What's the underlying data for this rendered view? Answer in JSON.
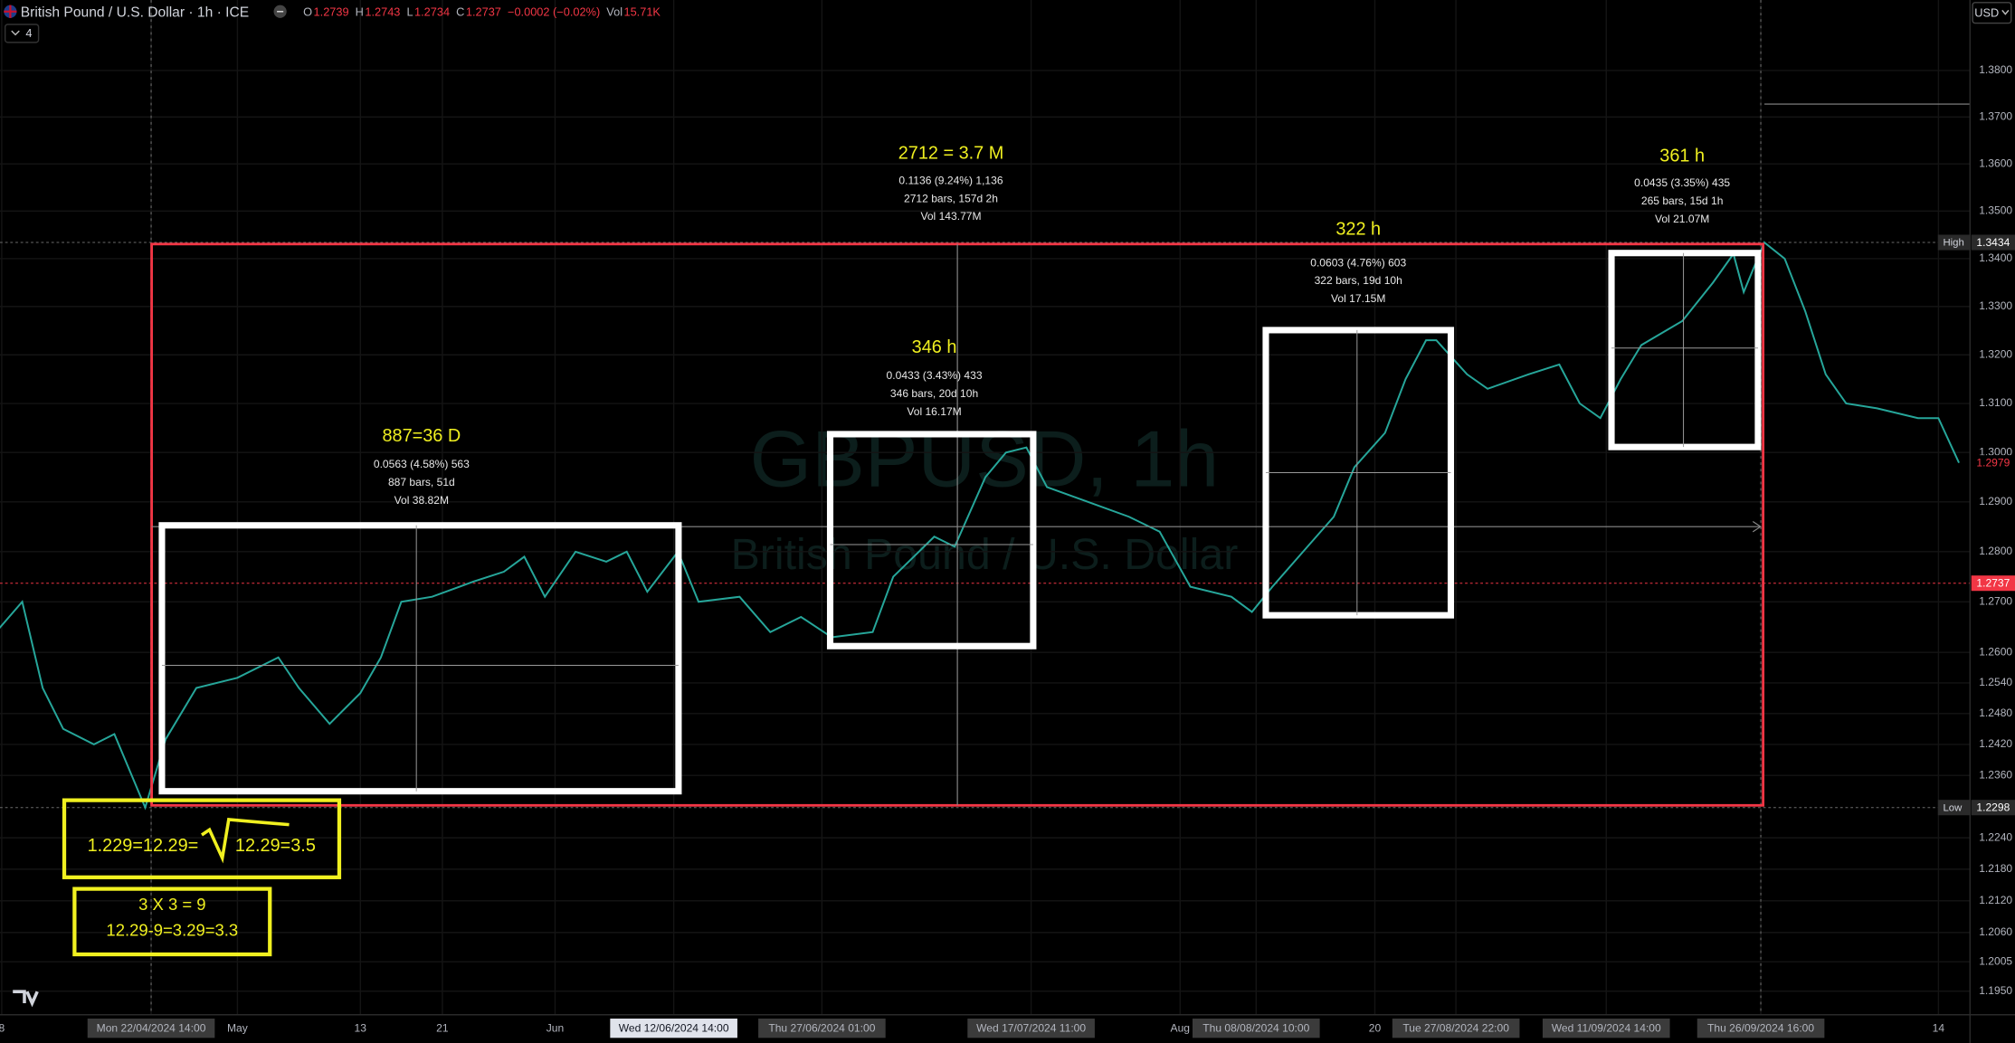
{
  "header": {
    "symbol": "British Pound / U.S. Dollar · 1h · ICE",
    "quote": [
      {
        "label": "O",
        "value": "1.2739"
      },
      {
        "label": "H",
        "value": "1.2743"
      },
      {
        "label": "L",
        "value": "1.2734"
      },
      {
        "label": "C",
        "value": "1.2737"
      },
      {
        "label": "",
        "value": "−0.0002 (−0.02%)"
      },
      {
        "label": "Vol",
        "value": "15.71K"
      }
    ],
    "indicators_count": "4",
    "currency": "USD"
  },
  "watermark": {
    "symbol": "GBPUSD, 1h",
    "name": "British Pound / U.S. Dollar"
  },
  "chart_data": {
    "type": "line",
    "color": "#26a69a",
    "ylog": true,
    "grid": true,
    "x": [
      "2024-04-07",
      "2024-04-10",
      "2024-04-12",
      "2024-04-14",
      "2024-04-17",
      "2024-04-19",
      "2024-04-22",
      "2024-04-24",
      "2024-04-27",
      "2024-05-01",
      "2024-05-05",
      "2024-05-07",
      "2024-05-10",
      "2024-05-13",
      "2024-05-15",
      "2024-05-17",
      "2024-05-20",
      "2024-05-24",
      "2024-05-27",
      "2024-05-29",
      "2024-05-31",
      "2024-06-03",
      "2024-06-06",
      "2024-06-08",
      "2024-06-10",
      "2024-06-13",
      "2024-06-15",
      "2024-06-19",
      "2024-06-22",
      "2024-06-25",
      "2024-06-28",
      "2024-07-02",
      "2024-07-04",
      "2024-07-08",
      "2024-07-10",
      "2024-07-13",
      "2024-07-15",
      "2024-07-17",
      "2024-07-19",
      "2024-07-23",
      "2024-07-27",
      "2024-07-30",
      "2024-08-02",
      "2024-08-06",
      "2024-08-08",
      "2024-08-10",
      "2024-08-13",
      "2024-08-16",
      "2024-08-18",
      "2024-08-21",
      "2024-08-23",
      "2024-08-25",
      "2024-08-26",
      "2024-08-29",
      "2024-08-31",
      "2024-09-04",
      "2024-09-07",
      "2024-09-09",
      "2024-09-11",
      "2024-09-13",
      "2024-09-15",
      "2024-09-19",
      "2024-09-22",
      "2024-09-24",
      "2024-09-25",
      "2024-09-27",
      "2024-09-29",
      "2024-10-01",
      "2024-10-03",
      "2024-10-05",
      "2024-10-08",
      "2024-10-12",
      "2024-10-14",
      "2024-10-16"
    ],
    "values": [
      1.263,
      1.27,
      1.253,
      1.245,
      1.242,
      1.244,
      1.2298,
      1.243,
      1.253,
      1.255,
      1.259,
      1.253,
      1.246,
      1.252,
      1.259,
      1.27,
      1.271,
      1.274,
      1.276,
      1.279,
      1.271,
      1.28,
      1.278,
      1.28,
      1.272,
      1.28,
      1.27,
      1.271,
      1.264,
      1.267,
      1.263,
      1.264,
      1.275,
      1.283,
      1.281,
      1.295,
      1.3,
      1.301,
      1.293,
      1.29,
      1.287,
      1.284,
      1.273,
      1.271,
      1.268,
      1.273,
      1.28,
      1.287,
      1.297,
      1.304,
      1.315,
      1.323,
      1.323,
      1.316,
      1.313,
      1.316,
      1.318,
      1.31,
      1.307,
      1.315,
      1.322,
      1.327,
      1.335,
      1.341,
      1.333,
      1.3434,
      1.34,
      1.329,
      1.316,
      1.31,
      1.309,
      1.307,
      1.307,
      1.2979
    ],
    "xlim": [
      "2024-04-07T20:00",
      "2024-10-17T02:00"
    ],
    "xticks": [
      {
        "value": "2024-04-08T00:00",
        "label": "8"
      },
      {
        "value": "2024-04-22T14:00",
        "label": "Mon 22/04/2024 14:00"
      },
      {
        "value": "2024-05-01T00:00",
        "label": "May"
      },
      {
        "value": "2024-05-13T00:00",
        "label": "13"
      },
      {
        "value": "2024-05-21T00:00",
        "label": "21"
      },
      {
        "value": "2024-06-01T00:00",
        "label": "Jun"
      },
      {
        "value": "2024-06-12T14:00",
        "label": "Wed 12/06/2024 14:00"
      },
      {
        "value": "2024-06-27T01:00",
        "label": "Thu 27/06/2024 01:00"
      },
      {
        "value": "2024-07-17T11:00",
        "label": "Wed 17/07/2024 11:00"
      },
      {
        "value": "2024-08-01T00:00",
        "label": "Aug"
      },
      {
        "value": "2024-08-08T10:00",
        "label": "Thu 08/08/2024 10:00"
      },
      {
        "value": "2024-08-20T00:00",
        "label": "20"
      },
      {
        "value": "2024-08-27T22:00",
        "label": "Tue 27/08/2024 22:00"
      },
      {
        "value": "2024-09-11T14:00",
        "label": "Wed 11/09/2024 14:00"
      },
      {
        "value": "2024-09-26T16:00",
        "label": "Thu 26/09/2024 16:00"
      },
      {
        "value": "2024-10-14T00:00",
        "label": "14"
      }
    ],
    "ylim": [
      1.1906,
      1.3953
    ],
    "yticks": [
      {
        "value": 1.38,
        "label": "1.3800"
      },
      {
        "value": 1.37,
        "label": "1.3700"
      },
      {
        "value": 1.36,
        "label": "1.3600"
      },
      {
        "value": 1.35,
        "label": "1.3500"
      },
      {
        "value": 1.34,
        "label": "1.3400"
      },
      {
        "value": 1.33,
        "label": "1.3300"
      },
      {
        "value": 1.32,
        "label": "1.3200"
      },
      {
        "value": 1.31,
        "label": "1.3100"
      },
      {
        "value": 1.3,
        "label": "1.3000"
      },
      {
        "value": 1.29,
        "label": "1.2900"
      },
      {
        "value": 1.28,
        "label": "1.2800"
      },
      {
        "value": 1.27,
        "label": "1.2700"
      },
      {
        "value": 1.26,
        "label": "1.2600"
      },
      {
        "value": 1.254,
        "label": "1.2540"
      },
      {
        "value": 1.248,
        "label": "1.2480"
      },
      {
        "value": 1.242,
        "label": "1.2420"
      },
      {
        "value": 1.236,
        "label": "1.2360"
      },
      {
        "value": 1.224,
        "label": "1.2240"
      },
      {
        "value": 1.218,
        "label": "1.2180"
      },
      {
        "value": 1.212,
        "label": "1.2120"
      },
      {
        "value": 1.206,
        "label": "1.2060"
      },
      1.2005,
      {
        "value": 1.195,
        "label": "1.1950"
      }
    ],
    "price_markers": [
      {
        "label": "High",
        "value": 1.3434
      },
      {
        "label": "Low",
        "value": 1.2298
      },
      {
        "value": 1.2979
      },
      {
        "value": 1.2737
      }
    ]
  },
  "annotations": [
    {
      "title": "887=36 D",
      "lines": [
        "0.0563 (4.58%) 563",
        "887 bars, 51d",
        "Vol 38.82M"
      ]
    },
    {
      "title": "346 h",
      "lines": [
        "0.0433 (3.43%) 433",
        "346 bars, 20d 10h",
        "Vol 16.17M"
      ]
    },
    {
      "title": "2712 = 3.7 M",
      "lines": [
        "0.1136 (9.24%) 1,136",
        "2712 bars, 157d 2h",
        "Vol 143.77M"
      ]
    },
    {
      "title": "322 h",
      "lines": [
        "0.0603 (4.76%) 603",
        "322 bars, 19d 10h",
        "Vol 17.15M"
      ]
    },
    {
      "title": "361 h",
      "lines": [
        "0.0435 (3.35%) 435",
        "265 bars, 15d 1h",
        "Vol 21.07M"
      ]
    }
  ],
  "notes": [
    {
      "lines": [
        "1.229=12.29=",
        "12.29=3.5"
      ]
    },
    {
      "lines": [
        "3 X 3 = 9",
        "12.29-9=3.29=3.3"
      ]
    }
  ]
}
